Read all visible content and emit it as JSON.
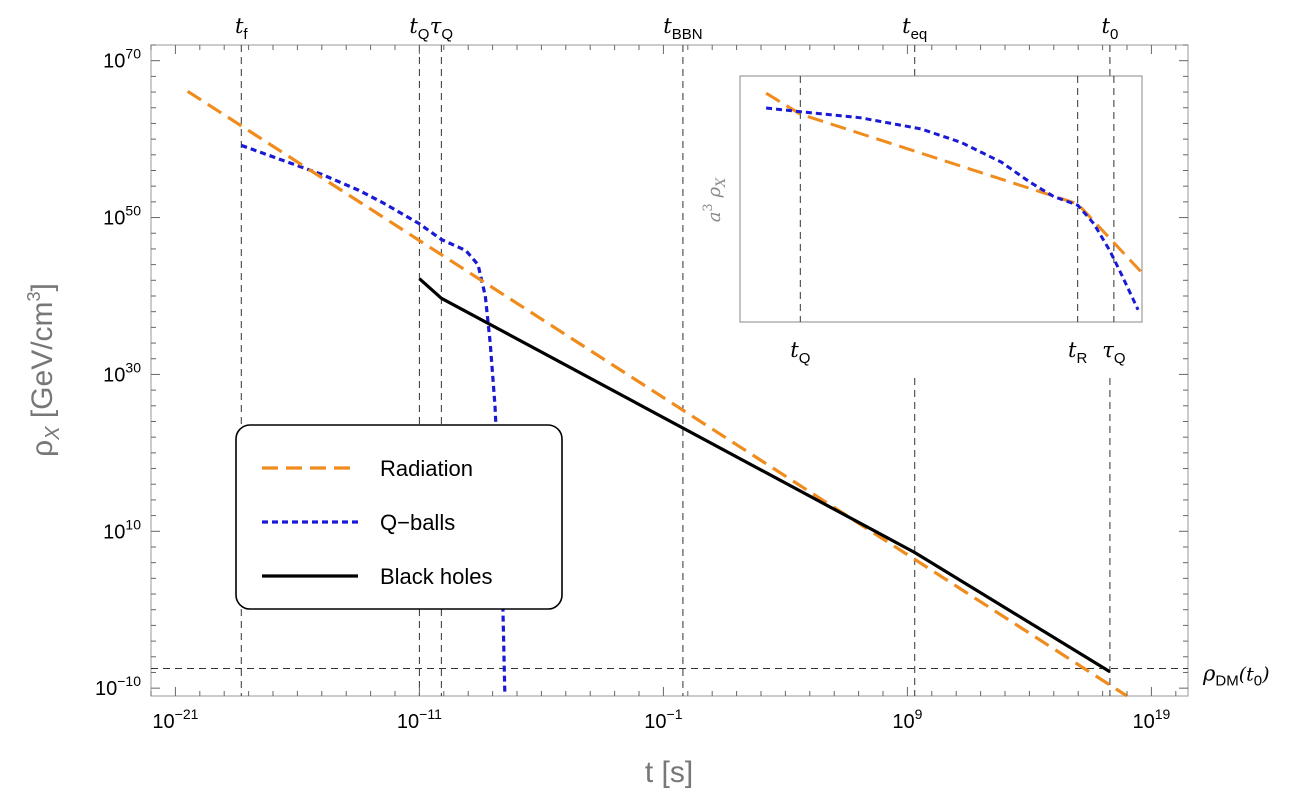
{
  "chart_data": {
    "type": "line",
    "x_scale": "log",
    "y_scale": "log",
    "xlabel": "t [s]",
    "ylabel": "ρX [GeV/cm3]",
    "xlim_exp": [
      -22,
      20.5
    ],
    "ylim_exp": [
      -11,
      72
    ],
    "x_ticks": [
      {
        "exp": -21,
        "base": "10",
        "sup": "−21"
      },
      {
        "exp": -11,
        "base": "10",
        "sup": "−11"
      },
      {
        "exp": -1,
        "base": "10",
        "sup": "−1"
      },
      {
        "exp": 9,
        "base": "10",
        "sup": "9"
      },
      {
        "exp": 19,
        "base": "10",
        "sup": "19"
      }
    ],
    "y_ticks": [
      {
        "exp": -10,
        "base": "10",
        "sup": "−10"
      },
      {
        "exp": 10,
        "base": "10",
        "sup": "10"
      },
      {
        "exp": 30,
        "base": "10",
        "sup": "30"
      },
      {
        "exp": 50,
        "base": "10",
        "sup": "50"
      },
      {
        "exp": 70,
        "base": "10",
        "sup": "70"
      }
    ],
    "vertical_markers": [
      {
        "x_exp": -18.3,
        "main": "t",
        "sub": "f",
        "sub_italic": true,
        "full": true
      },
      {
        "x_exp": -11.0,
        "main": "t",
        "sub": "Q",
        "sub_italic": true,
        "full": true
      },
      {
        "x_exp": -10.1,
        "main": "τ",
        "sub": "Q",
        "sub_italic": true,
        "full": true
      },
      {
        "x_exp": -0.2,
        "main": "t",
        "sub": "BBN",
        "sub_italic": false,
        "full": true
      },
      {
        "x_exp": 9.3,
        "main": "t",
        "sub": "eq",
        "sub_italic": false,
        "full": false
      },
      {
        "x_exp": 17.3,
        "main": "t",
        "sub": "0",
        "sub_italic": false,
        "full": false
      }
    ],
    "horizontal_marker": {
      "y_exp": -7.5,
      "main": "ρ",
      "sub": "DM",
      "suffix": "(t",
      "suffix_sub": "0",
      "close": ")"
    },
    "series": [
      {
        "name": "Radiation",
        "color": "#f08c1e",
        "style": "long-dash",
        "points": [
          [
            -20.5,
            66.1
          ],
          [
            18.0,
            -11.0
          ]
        ]
      },
      {
        "name": "Q−balls",
        "color": "#1a1ad6",
        "style": "short-dash",
        "points": [
          [
            -18.3,
            59.2
          ],
          [
            -15.0,
            55.5
          ],
          [
            -13.5,
            53.5
          ],
          [
            -12.5,
            51.9
          ],
          [
            -11.0,
            49.2
          ],
          [
            -10.1,
            47.2
          ],
          [
            -9.1,
            45.8
          ],
          [
            -8.6,
            44.0
          ],
          [
            -8.3,
            40.0
          ],
          [
            -8.1,
            34.0
          ],
          [
            -7.9,
            26.0
          ],
          [
            -7.75,
            16.0
          ],
          [
            -7.6,
            3.0
          ],
          [
            -7.5,
            -10.5
          ]
        ]
      },
      {
        "name": "Black holes",
        "color": "#000000",
        "style": "solid",
        "points": [
          [
            -11.0,
            42.2
          ],
          [
            -10.1,
            39.7
          ],
          [
            9.3,
            7.3
          ],
          [
            17.3,
            -7.9
          ]
        ]
      }
    ],
    "legend": {
      "position": "lower-left"
    },
    "inset": {
      "ylabel_main": "a",
      "ylabel_sup": "3",
      "ylabel_rho": "ρ",
      "ylabel_sub": "X",
      "markers": [
        {
          "u": 0.15,
          "main": "t",
          "sub": "Q"
        },
        {
          "u": 0.84,
          "main": "t",
          "sub": "R"
        },
        {
          "u": 0.93,
          "main": "τ",
          "sub": "Q"
        }
      ],
      "radiation": [
        [
          0.065,
          0.93
        ],
        [
          0.15,
          0.845
        ],
        [
          0.84,
          0.48
        ],
        [
          1.0,
          0.2
        ]
      ],
      "qballs": [
        [
          0.065,
          0.87
        ],
        [
          0.15,
          0.855
        ],
        [
          0.3,
          0.83
        ],
        [
          0.45,
          0.785
        ],
        [
          0.55,
          0.73
        ],
        [
          0.65,
          0.65
        ],
        [
          0.72,
          0.57
        ],
        [
          0.78,
          0.51
        ],
        [
          0.84,
          0.475
        ],
        [
          0.88,
          0.4
        ],
        [
          0.92,
          0.29
        ],
        [
          0.95,
          0.19
        ],
        [
          0.99,
          0.05
        ]
      ]
    }
  }
}
